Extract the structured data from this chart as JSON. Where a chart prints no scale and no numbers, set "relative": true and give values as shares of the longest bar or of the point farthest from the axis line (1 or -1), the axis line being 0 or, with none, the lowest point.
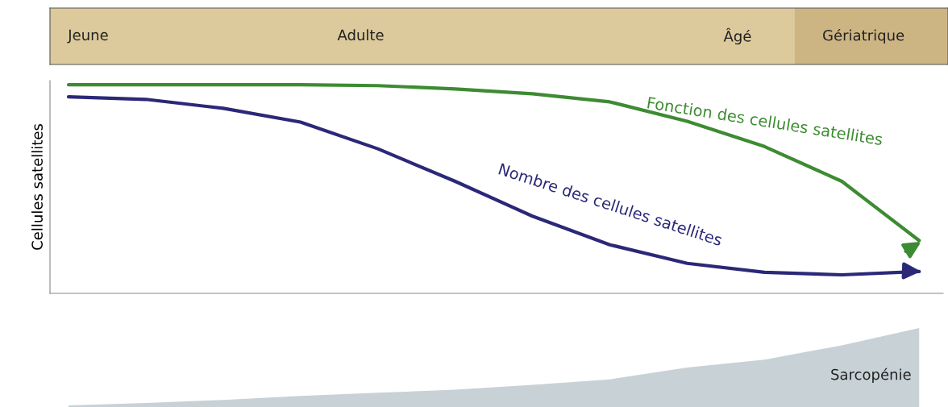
{
  "chart_data": [
    {
      "type": "line",
      "relative": true,
      "ylabel": "Cellules satellites",
      "legend": false,
      "categories": [
        null,
        null,
        null,
        null,
        null,
        null,
        null,
        null,
        null,
        null,
        null,
        null
      ],
      "annotations": [
        "Jeune",
        "Adulte",
        "Âgé",
        "Gériatrique"
      ],
      "series": [
        {
          "name": "Fonction des cellules satellites",
          "color": "#3d8b32",
          "values": [
            1,
            1,
            1,
            1,
            0.996,
            0.98,
            0.957,
            0.918,
            0.825,
            0.704,
            0.537,
            0.253
          ]
        },
        {
          "name": "Nombre des cellules satellites",
          "color": "#2b2878",
          "values": [
            0.942,
            0.93,
            0.887,
            0.821,
            0.693,
            0.537,
            0.37,
            0.233,
            0.144,
            0.101,
            0.089,
            0.105
          ]
        }
      ]
    },
    {
      "type": "area",
      "relative": true,
      "categories": [
        null,
        null,
        null,
        null,
        null,
        null,
        null,
        null,
        null,
        null,
        null,
        null
      ],
      "series": [
        {
          "name": "Sarcopénie",
          "color": "#c8d2d6",
          "values": [
            0.02,
            0.05,
            0.09,
            0.14,
            0.18,
            0.22,
            0.28,
            0.35,
            0.5,
            0.6,
            0.78,
            1.0
          ]
        }
      ]
    }
  ]
}
